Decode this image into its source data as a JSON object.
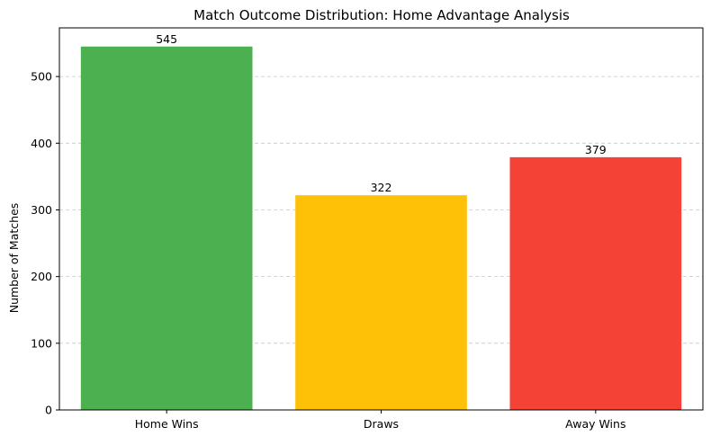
{
  "chart_data": {
    "type": "bar",
    "title": "Match Outcome Distribution: Home Advantage Analysis",
    "xlabel": "",
    "ylabel": "Number of Matches",
    "categories": [
      "Home Wins",
      "Draws",
      "Away Wins"
    ],
    "values": [
      545,
      322,
      379
    ],
    "data_labels": [
      "545",
      "322",
      "379"
    ],
    "colors": [
      "#4caf50",
      "#ffc107",
      "#f44336"
    ],
    "ylim": [
      0,
      573
    ],
    "yticks": [
      0,
      100,
      200,
      300,
      400,
      500
    ],
    "ytick_labels": [
      "0",
      "100",
      "200",
      "300",
      "400",
      "500"
    ],
    "grid": "y-dashed",
    "legend": "none"
  }
}
